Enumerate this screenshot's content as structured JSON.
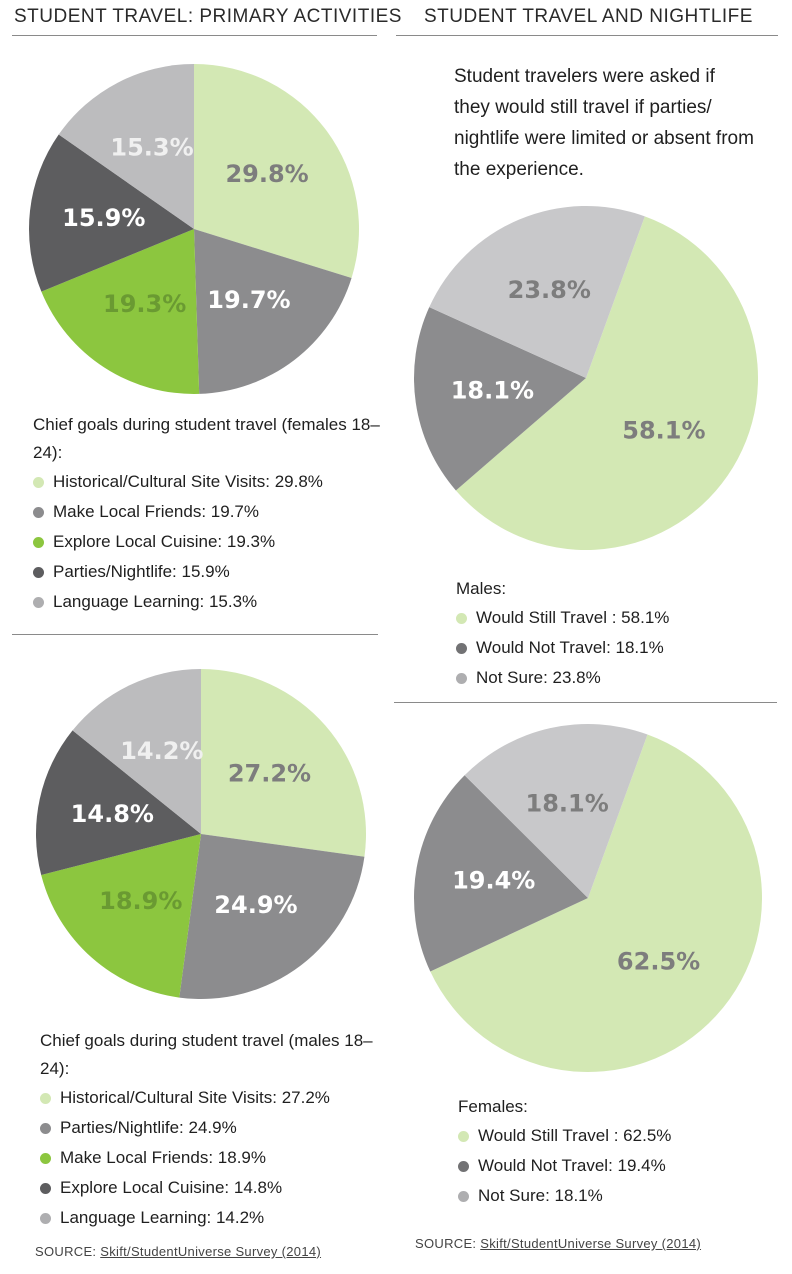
{
  "left_header": "STUDENT TRAVEL: PRIMARY ACTIVITIES",
  "right_header": "STUDENT TRAVEL AND NIGHTLIFE",
  "intro_text": "Student travelers were asked if they would still travel if parties/ nightlife were limited or absent from the experience.",
  "colors": {
    "light_green": "#d3e8b4",
    "green": "#8cc63f",
    "dark_gray": "#5d5d5f",
    "mid_gray": "#8c8c8e",
    "light_gray": "#aeaeb0",
    "pale_gray": "#c8c8ca"
  },
  "legends": {
    "female_goals": {
      "title": "Chief goals during student travel (females 18–24):",
      "items": [
        {
          "label": "Historical/Cultural Site Visits: 29.8%",
          "color": "#d3e8b4"
        },
        {
          "label": "Make Local Friends: 19.7%",
          "color": "#8c8c8e"
        },
        {
          "label": "Explore Local Cuisine: 19.3%",
          "color": "#8cc63f"
        },
        {
          "label": "Parties/Nightlife: 15.9%",
          "color": "#5d5d5f"
        },
        {
          "label": "Language Learning: 15.3%",
          "color": "#aeaeb0"
        }
      ]
    },
    "male_goals": {
      "title": "Chief goals during student travel (males 18–24):",
      "items": [
        {
          "label": "Historical/Cultural Site Visits: 27.2%",
          "color": "#d3e8b4"
        },
        {
          "label": "Parties/Nightlife: 24.9%",
          "color": "#8c8c8e"
        },
        {
          "label": "Make Local Friends: 18.9%",
          "color": "#8cc63f"
        },
        {
          "label": "Explore Local Cuisine: 14.8%",
          "color": "#5d5d5f"
        },
        {
          "label": "Language Learning: 14.2%",
          "color": "#aeaeb0"
        }
      ]
    },
    "males_nightlife": {
      "title": "Males:",
      "items": [
        {
          "label": "Would Still Travel : 58.1%",
          "color": "#d3e8b4"
        },
        {
          "label": "Would Not Travel: 18.1%",
          "color": "#727274"
        },
        {
          "label": "Not Sure: 23.8%",
          "color": "#aeaeb0"
        }
      ]
    },
    "females_nightlife": {
      "title": "Females:",
      "items": [
        {
          "label": "Would Still Travel : 62.5%",
          "color": "#d3e8b4"
        },
        {
          "label": "Would Not Travel: 19.4%",
          "color": "#727274"
        },
        {
          "label": "Not Sure: 18.1%",
          "color": "#aeaeb0"
        }
      ]
    }
  },
  "source": {
    "prefix": "SOURCE: ",
    "link_text": "Skift/StudentUniverse Survey (2014)"
  },
  "chart_data": [
    {
      "type": "pie",
      "title": "",
      "labels": [
        "Historical/Cultural Site Visits",
        "Make Local Friends",
        "Explore Local Cuisine",
        "Parties/Nightlife",
        "Language Learning"
      ],
      "values": [
        29.8,
        19.7,
        19.3,
        15.9,
        15.3
      ],
      "value_labels": [
        "29.8%",
        "19.7%",
        "19.3%",
        "15.9%",
        "15.3%"
      ],
      "colors": [
        "#d3e8b4",
        "#8c8c8e",
        "#8cc63f",
        "#5d5d5f",
        "#bcbcbe"
      ],
      "label_colors": [
        "#7d7d7d",
        "#ffffff",
        "#6a9a32",
        "#ffffff",
        "#f0f0f0"
      ]
    },
    {
      "type": "pie",
      "title": "",
      "labels": [
        "Historical/Cultural Site Visits",
        "Parties/Nightlife",
        "Make Local Friends",
        "Explore Local Cuisine",
        "Language Learning"
      ],
      "values": [
        27.2,
        24.9,
        18.9,
        14.8,
        14.2
      ],
      "value_labels": [
        "27.2%",
        "24.9%",
        "18.9%",
        "14.8%",
        "14.2%"
      ],
      "colors": [
        "#d3e8b4",
        "#8c8c8e",
        "#8cc63f",
        "#5d5d5f",
        "#bcbcbe"
      ],
      "label_colors": [
        "#7d7d7d",
        "#ffffff",
        "#6a9a32",
        "#ffffff",
        "#f0f0f0"
      ]
    },
    {
      "type": "pie",
      "title": "",
      "labels": [
        "Would Still Travel",
        "Would Not Travel",
        "Not Sure"
      ],
      "values": [
        58.1,
        18.1,
        23.8
      ],
      "value_labels": [
        "58.1%",
        "18.1%",
        "23.8%"
      ],
      "colors": [
        "#d3e8b4",
        "#8c8c8e",
        "#c8c8ca"
      ],
      "label_colors": [
        "#7d7d7d",
        "#ffffff",
        "#7d7d7d"
      ]
    },
    {
      "type": "pie",
      "title": "",
      "labels": [
        "Would Still Travel",
        "Would Not Travel",
        "Not Sure"
      ],
      "values": [
        62.5,
        19.4,
        18.1
      ],
      "value_labels": [
        "62.5%",
        "19.4%",
        "18.1%"
      ],
      "colors": [
        "#d3e8b4",
        "#8c8c8e",
        "#c8c8ca"
      ],
      "label_colors": [
        "#7d7d7d",
        "#ffffff",
        "#7d7d7d"
      ]
    }
  ]
}
